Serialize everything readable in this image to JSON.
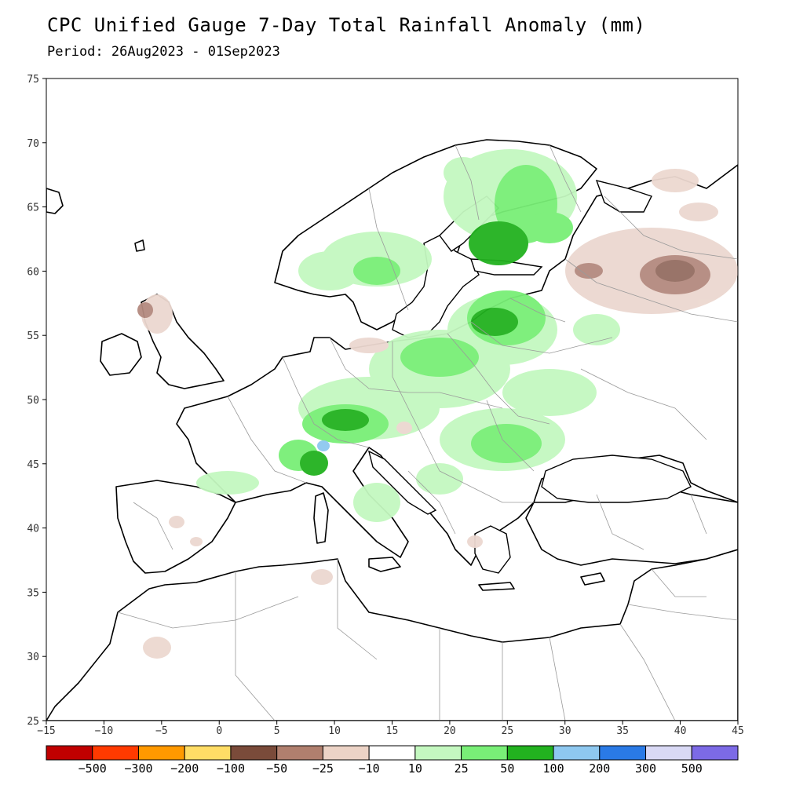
{
  "header": {
    "title": "CPC Unified Gauge 7-Day Total Rainfall Anomaly (mm)",
    "period": "Period: 26Aug2023 - 01Sep2023"
  },
  "map": {
    "lon_ticks": [
      "-15",
      "-10",
      "-5",
      "0",
      "5",
      "10",
      "15",
      "20",
      "25",
      "30",
      "35",
      "40",
      "45"
    ],
    "lat_ticks": [
      "25",
      "30",
      "35",
      "40",
      "45",
      "50",
      "55",
      "60",
      "65",
      "70",
      "75"
    ],
    "colors": {
      "water": "#ffffff",
      "land": "#ffffff",
      "coast": "#000000",
      "border": "#9a9a9a",
      "green_light": "#c4f8c0",
      "green_mid": "#79ef77",
      "green_dark": "#22b21f",
      "brown_light": "#ecd8d0",
      "brown_mid": "#b48a7f",
      "brown_dark": "#7a5548",
      "blue_light": "#8ec8f0"
    }
  },
  "colorbar": {
    "boundaries": [
      "-500",
      "-300",
      "-200",
      "-100",
      "-50",
      "-25",
      "-10",
      "10",
      "25",
      "50",
      "100",
      "200",
      "300",
      "500"
    ],
    "colors": [
      "#c00000",
      "#ff3a00",
      "#ff9900",
      "#ffdd66",
      "#7a4b3a",
      "#b07f6e",
      "#ecd3c6",
      "#ffffff",
      "#c4f8c0",
      "#79ef77",
      "#22b21f",
      "#8ec8f0",
      "#2a7ae6",
      "#d9d9f5",
      "#7c6ae6"
    ]
  }
}
